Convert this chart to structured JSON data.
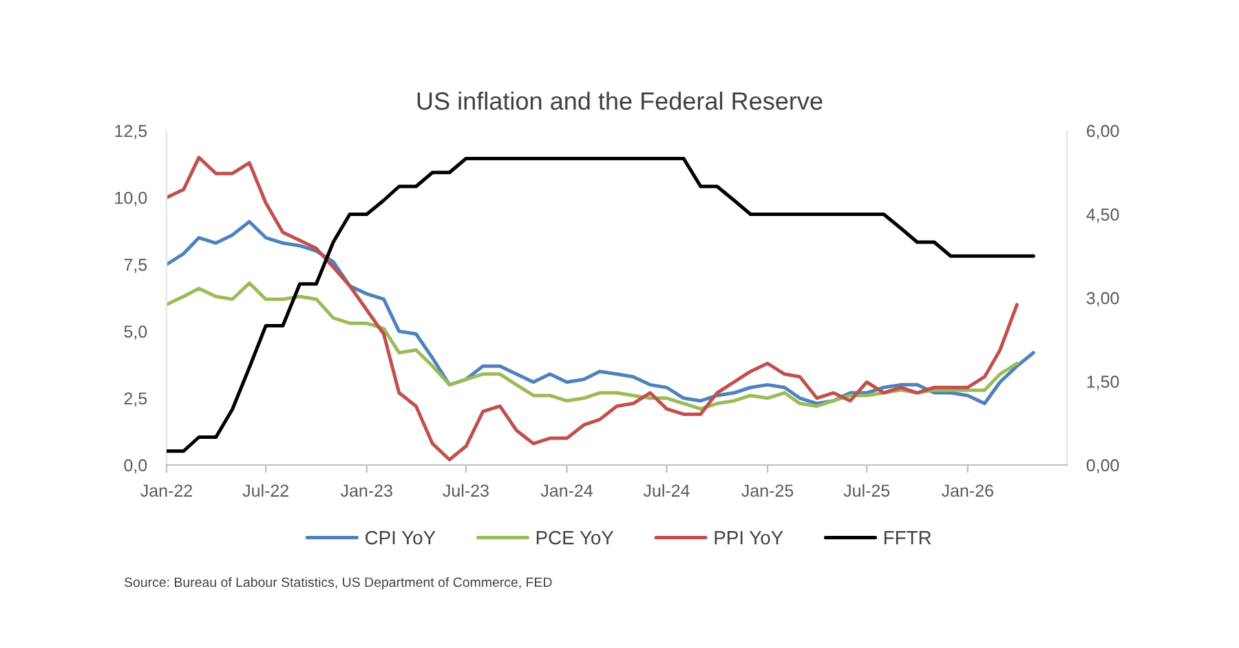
{
  "chart_data": {
    "type": "line",
    "title": "US inflation and the Federal Reserve",
    "x": [
      "2022-01",
      "2022-02",
      "2022-03",
      "2022-04",
      "2022-05",
      "2022-06",
      "2022-07",
      "2022-08",
      "2022-09",
      "2022-10",
      "2022-11",
      "2022-12",
      "2023-01",
      "2023-02",
      "2023-03",
      "2023-04",
      "2023-05",
      "2023-06",
      "2023-07",
      "2023-08",
      "2023-09",
      "2023-10",
      "2023-11",
      "2023-12",
      "2024-01",
      "2024-02",
      "2024-03",
      "2024-04",
      "2024-05",
      "2024-06",
      "2024-07",
      "2024-08",
      "2024-09",
      "2024-10",
      "2024-11",
      "2024-12",
      "2025-01",
      "2025-02",
      "2025-03",
      "2025-04",
      "2025-05",
      "2025-06",
      "2025-07",
      "2025-08",
      "2025-09",
      "2025-10",
      "2025-11",
      "2025-12",
      "2026-01",
      "2026-02",
      "2026-03",
      "2026-04",
      "2026-05"
    ],
    "series": [
      {
        "name": "CPI YoY",
        "color": "#4f81bd",
        "values": [
          7.5,
          7.9,
          8.5,
          8.3,
          8.6,
          9.1,
          8.5,
          8.3,
          8.2,
          8.0,
          7.6,
          6.7,
          6.4,
          6.2,
          5.0,
          4.9,
          4.0,
          3.0,
          3.2,
          3.7,
          3.7,
          3.4,
          3.1,
          3.4,
          3.1,
          3.2,
          3.5,
          3.4,
          3.3,
          3.0,
          2.9,
          2.5,
          2.4,
          2.6,
          2.7,
          2.9,
          3.0,
          2.9,
          2.5,
          2.3,
          2.4,
          2.7,
          2.7,
          2.9,
          3.0,
          3.0,
          2.7,
          2.7,
          2.6,
          2.3,
          3.1,
          3.7,
          4.2
        ]
      },
      {
        "name": "PCE YoY",
        "color": "#9bbb59",
        "values": [
          6.0,
          6.3,
          6.6,
          6.3,
          6.2,
          6.8,
          6.2,
          6.2,
          6.3,
          6.2,
          5.5,
          5.3,
          5.3,
          5.1,
          4.2,
          4.3,
          3.7,
          3.0,
          3.2,
          3.4,
          3.4,
          3.0,
          2.6,
          2.6,
          2.4,
          2.5,
          2.7,
          2.7,
          2.6,
          2.5,
          2.5,
          2.3,
          2.1,
          2.3,
          2.4,
          2.6,
          2.5,
          2.7,
          2.3,
          2.2,
          2.4,
          2.6,
          2.6,
          2.7,
          2.8,
          2.7,
          2.8,
          2.8,
          2.8,
          2.8,
          3.4,
          3.8,
          null
        ]
      },
      {
        "name": "PPI YoY",
        "color": "#c0504d",
        "values": [
          10.0,
          10.3,
          11.5,
          10.9,
          10.9,
          11.3,
          9.8,
          8.7,
          8.4,
          8.1,
          7.4,
          6.7,
          5.8,
          4.9,
          2.7,
          2.2,
          0.8,
          0.2,
          0.7,
          2.0,
          2.2,
          1.3,
          0.8,
          1.0,
          1.0,
          1.5,
          1.7,
          2.2,
          2.3,
          2.7,
          2.1,
          1.9,
          1.9,
          2.7,
          3.1,
          3.5,
          3.8,
          3.4,
          3.3,
          2.5,
          2.7,
          2.4,
          3.1,
          2.7,
          2.9,
          2.7,
          2.9,
          2.9,
          2.9,
          3.3,
          4.3,
          6.0,
          null
        ]
      },
      {
        "name": "FFTR",
        "color": "#000000",
        "axis": "y2",
        "values": [
          0.25,
          0.25,
          0.5,
          0.5,
          1.0,
          1.75,
          2.5,
          2.5,
          3.25,
          3.25,
          4.0,
          4.5,
          4.5,
          4.75,
          5.0,
          5.0,
          5.25,
          5.25,
          5.5,
          5.5,
          5.5,
          5.5,
          5.5,
          5.5,
          5.5,
          5.5,
          5.5,
          5.5,
          5.5,
          5.5,
          5.5,
          5.5,
          5.0,
          5.0,
          4.75,
          4.5,
          4.5,
          4.5,
          4.5,
          4.5,
          4.5,
          4.5,
          4.5,
          4.5,
          4.25,
          4.0,
          4.0,
          3.75,
          3.75,
          3.75,
          3.75,
          3.75,
          3.75
        ]
      }
    ],
    "xlim": [
      "2022-01",
      "2026-07"
    ],
    "xticks": [
      {
        "value": "2022-01",
        "label": "Jan-22"
      },
      {
        "value": "2022-07",
        "label": "Jul-22"
      },
      {
        "value": "2023-01",
        "label": "Jan-23"
      },
      {
        "value": "2023-07",
        "label": "Jul-23"
      },
      {
        "value": "2024-01",
        "label": "Jan-24"
      },
      {
        "value": "2024-07",
        "label": "Jul-24"
      },
      {
        "value": "2025-01",
        "label": "Jan-25"
      },
      {
        "value": "2025-07",
        "label": "Jul-25"
      },
      {
        "value": "2026-01",
        "label": "Jan-26"
      }
    ],
    "ylim": [
      0,
      12.5
    ],
    "yticks": [
      {
        "value": 0,
        "label": "0,0"
      },
      {
        "value": 2.5,
        "label": "2,5"
      },
      {
        "value": 5,
        "label": "5,0"
      },
      {
        "value": 7.5,
        "label": "7,5"
      },
      {
        "value": 10,
        "label": "10,0"
      },
      {
        "value": 12.5,
        "label": "12,5"
      }
    ],
    "y2lim": [
      0,
      6
    ],
    "y2ticks": [
      {
        "value": 0,
        "label": "0,00"
      },
      {
        "value": 1.5,
        "label": "1,50"
      },
      {
        "value": 3,
        "label": "3,00"
      },
      {
        "value": 4.5,
        "label": "4,50"
      },
      {
        "value": 6,
        "label": "6,00"
      }
    ],
    "legend": "bottom",
    "marker": "none",
    "line_style": "solid",
    "annotations": [
      "Source: Bureau of Labour Statistics, US Department of Commerce, FED"
    ]
  }
}
